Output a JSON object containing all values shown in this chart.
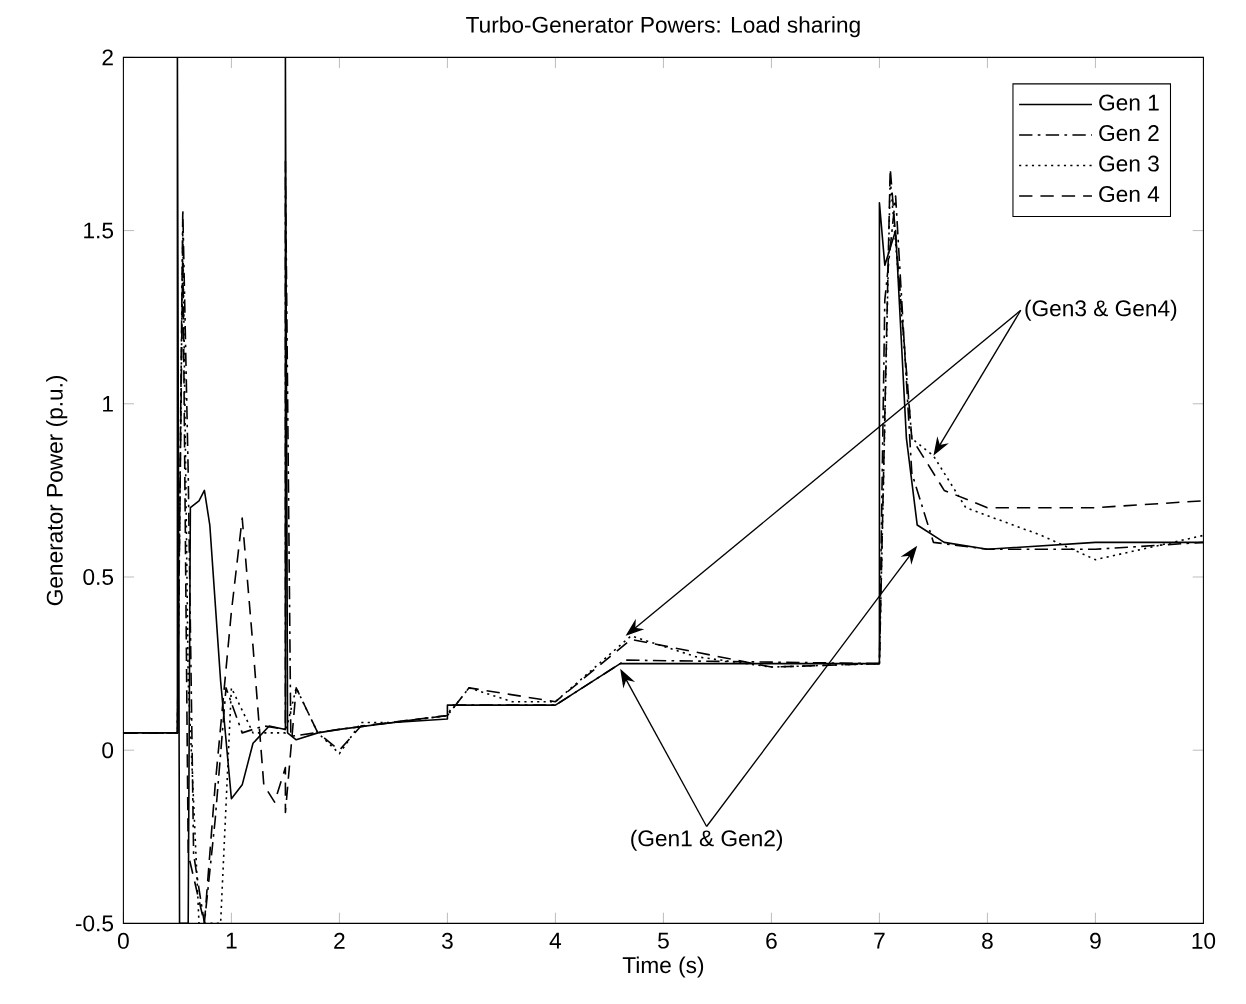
{
  "chart_data": {
    "type": "line",
    "title": "Turbo-Generator Powers: Load sharing",
    "xlabel": "Time (s)",
    "ylabel": "Generator Power (p.u.)",
    "xlim": [
      0,
      10
    ],
    "ylim": [
      -0.5,
      2
    ],
    "xticks": [
      0,
      1,
      2,
      3,
      4,
      5,
      6,
      7,
      8,
      9,
      10
    ],
    "yticks": [
      -0.5,
      0,
      0.5,
      1,
      1.5,
      2
    ],
    "legend": "top right",
    "grid": false,
    "annotations": [
      "(Gen3 & Gen4)",
      "(Gen1 & Gen2)"
    ],
    "series": [
      {
        "name": "Gen 1",
        "color": "#000000",
        "line_style": "solid",
        "x": [
          0,
          0.5,
          0.5,
          0.52,
          0.6,
          0.62,
          0.7,
          0.75,
          0.8,
          0.9,
          1.0,
          1.1,
          1.2,
          1.35,
          1.5,
          1.5,
          1.52,
          1.6,
          1.8,
          2.0,
          2.5,
          3.0,
          3.0,
          4.0,
          4.6,
          7.0,
          7.0,
          7.05,
          7.15,
          7.25,
          7.35,
          7.6,
          8,
          9,
          10
        ],
        "values": [
          0.05,
          0.05,
          2,
          -0.5,
          -0.5,
          0.7,
          0.72,
          0.75,
          0.65,
          0.2,
          -0.14,
          -0.1,
          0.02,
          0.07,
          0.06,
          2,
          0.05,
          0.03,
          0.05,
          0.06,
          0.08,
          0.09,
          0.13,
          0.13,
          0.25,
          0.25,
          1.58,
          1.4,
          1.5,
          0.9,
          0.65,
          0.6,
          0.58,
          0.6,
          0.6
        ]
      },
      {
        "name": "Gen 2",
        "color": "#000000",
        "line_style": "dashdot",
        "x": [
          0,
          0.5,
          0.55,
          0.6,
          0.65,
          0.75,
          0.85,
          0.95,
          1.1,
          1.3,
          1.5,
          1.5,
          1.55,
          2,
          2.5,
          3.0,
          3.05,
          4,
          4.65,
          7,
          7.05,
          7.15,
          7.3,
          7.5,
          8,
          9,
          10
        ],
        "values": [
          0.05,
          0.05,
          1.56,
          0.8,
          -0.3,
          -0.5,
          -0.2,
          0.18,
          0.05,
          0.07,
          0.06,
          1.7,
          0.04,
          0.06,
          0.08,
          0.1,
          0.13,
          0.13,
          0.26,
          0.25,
          1.3,
          1.6,
          0.8,
          0.6,
          0.58,
          0.58,
          0.6
        ]
      },
      {
        "name": "Gen 3",
        "color": "#000000",
        "line_style": "dotted",
        "x": [
          0,
          0.5,
          0.55,
          0.6,
          0.7,
          0.9,
          1.0,
          1.2,
          1.5,
          1.6,
          1.8,
          2.0,
          2.2,
          2.5,
          3,
          3.2,
          3.6,
          4,
          4.7,
          5.3,
          6,
          7,
          7.1,
          7.3,
          7.5,
          7.8,
          8.5,
          9,
          10
        ],
        "values": [
          0.05,
          0.05,
          1.5,
          0.2,
          -0.5,
          -0.5,
          0.18,
          0.05,
          0.05,
          0.18,
          0.05,
          -0.01,
          0.08,
          0.08,
          0.1,
          0.18,
          0.14,
          0.14,
          0.33,
          0.27,
          0.24,
          0.25,
          1.65,
          0.9,
          0.85,
          0.7,
          0.62,
          0.55,
          0.62
        ]
      },
      {
        "name": "Gen 4",
        "color": "#000000",
        "line_style": "dashed",
        "x": [
          0,
          0.5,
          0.55,
          0.6,
          0.75,
          0.85,
          1.0,
          1.1,
          1.2,
          1.3,
          1.4,
          1.5,
          1.5,
          1.6,
          1.8,
          2,
          2.2,
          3,
          3.2,
          4,
          4.7,
          6,
          7,
          7.1,
          7.3,
          7.6,
          8,
          9,
          10
        ],
        "values": [
          0.05,
          0.05,
          1.45,
          -0.3,
          -0.5,
          -0.1,
          0.4,
          0.67,
          0.3,
          -0.1,
          -0.15,
          -0.05,
          -0.18,
          0.18,
          0.05,
          0.0,
          0.07,
          0.1,
          0.18,
          0.14,
          0.32,
          0.24,
          0.25,
          1.68,
          0.9,
          0.75,
          0.7,
          0.7,
          0.72
        ]
      }
    ]
  }
}
